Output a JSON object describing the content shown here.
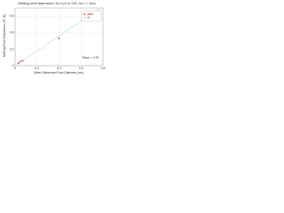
{
  "chart_data": {
    "type": "scatter",
    "title": "Melting point depression for H₂O in SiO₂ for r = 3nm",
    "x_label": "Other Dimension Pore Diameter (nm)",
    "y_label": "Melting Point Depression ΔT (K)",
    "series": [
      {
        "name": "data",
        "mode": "markers",
        "color": "#d03030",
        "x": [
          0.03,
          0.05,
          0.07,
          0.4
        ],
        "values": [
          0.03,
          0.05,
          0.06,
          0.33
        ]
      },
      {
        "name": "fit",
        "mode": "line",
        "color": "#30b8c0",
        "x": [
          0,
          0.8
        ],
        "values": [
          0,
          0.72
        ]
      }
    ],
    "annotation": "Slope = 0.91",
    "xlim": [
      0,
      0.8
    ],
    "xticks": [
      0,
      0.2,
      0.4,
      0.6,
      0.8
    ],
    "ylim": [
      0,
      0.7
    ],
    "yticks": [
      0,
      0.2,
      0.4,
      0.6
    ],
    "grid": true,
    "legend": "upper right"
  }
}
